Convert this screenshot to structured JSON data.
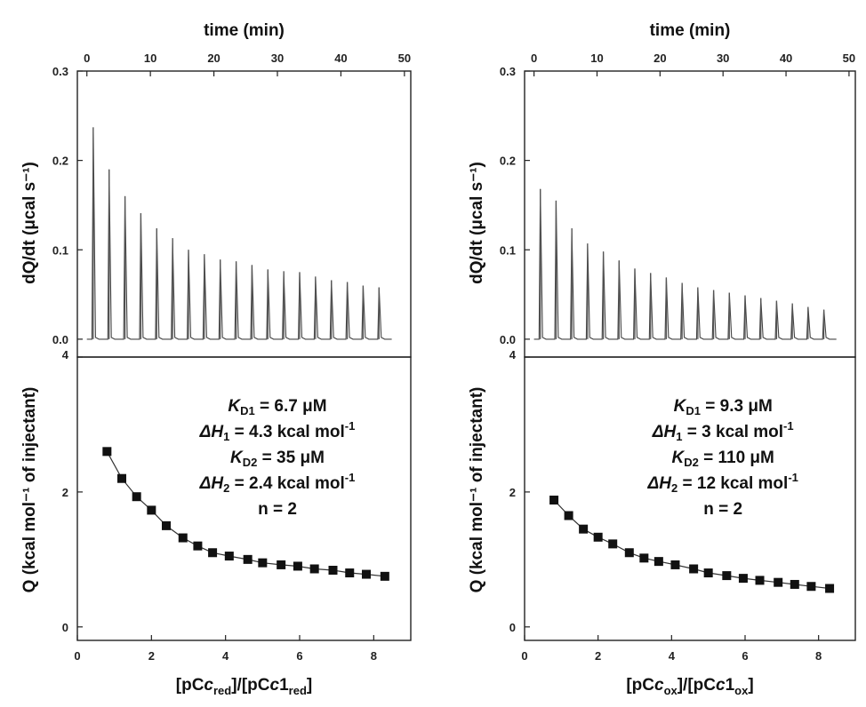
{
  "chart_data": [
    {
      "panel": "left",
      "top": {
        "type": "line",
        "x_top_label": "time (min)",
        "x_top_ticks": [
          "0",
          "10",
          "20",
          "30",
          "40",
          "50"
        ],
        "x_range": [
          -1.5,
          51
        ],
        "ylabel": "dQ/dt (μcal s⁻¹)",
        "y_ticks": [
          "0.0",
          "0.1",
          "0.2",
          "0.3"
        ],
        "ylim": [
          -0.02,
          0.3
        ],
        "peak_times": [
          1.0,
          3.5,
          6.0,
          8.5,
          11.0,
          13.5,
          16.0,
          18.5,
          21.0,
          23.5,
          26.0,
          28.5,
          31.0,
          33.5,
          36.0,
          38.5,
          41.0,
          43.5,
          46.0
        ],
        "peak_heights": [
          0.237,
          0.19,
          0.16,
          0.141,
          0.124,
          0.113,
          0.1,
          0.095,
          0.089,
          0.087,
          0.083,
          0.078,
          0.076,
          0.075,
          0.07,
          0.066,
          0.064,
          0.06,
          0.058
        ],
        "baseline_end": 48
      },
      "bottom": {
        "type": "scatter",
        "xlabel": "[pCc_red]/[pCc1_red]",
        "xlabel_parts": {
          "open": "[pC",
          "italic1": "c",
          "sub1": "red",
          "mid": "]/[pC",
          "italic2": "c",
          "one": "1",
          "sub2": "red",
          "close": "]"
        },
        "x_ticks": [
          "0",
          "2",
          "4",
          "6",
          "8"
        ],
        "xlim": [
          0,
          9
        ],
        "ylabel": "Q (kcal mol⁻¹ of injectant)",
        "y_ticks": [
          "0",
          "2",
          "4"
        ],
        "ylim": [
          -0.2,
          4
        ],
        "x": [
          0.8,
          1.2,
          1.6,
          2.0,
          2.4,
          2.85,
          3.25,
          3.65,
          4.1,
          4.6,
          5.0,
          5.5,
          5.95,
          6.4,
          6.9,
          7.35,
          7.8,
          8.3
        ],
        "y": [
          2.6,
          2.2,
          1.93,
          1.73,
          1.5,
          1.32,
          1.2,
          1.1,
          1.05,
          1.0,
          0.95,
          0.92,
          0.9,
          0.86,
          0.84,
          0.8,
          0.78,
          0.75
        ],
        "annotations": [
          {
            "sym": "K",
            "sub": "D1",
            "rest": " = 6.7 μM"
          },
          {
            "sym": "ΔH",
            "sub": "1",
            "rest": " = 4.3 kcal mol",
            "sup": "-1"
          },
          {
            "sym": "K",
            "sub": "D2",
            "rest": " = 35 μM"
          },
          {
            "sym": "ΔH",
            "sub": "2",
            "rest": " = 2.4 kcal mol",
            "sup": "-1"
          },
          {
            "sym": "",
            "sub": "",
            "rest": "n = 2"
          }
        ]
      }
    },
    {
      "panel": "right",
      "top": {
        "type": "line",
        "x_top_label": "time (min)",
        "x_top_ticks": [
          "0",
          "10",
          "20",
          "30",
          "40",
          "50"
        ],
        "x_range": [
          -1.5,
          51
        ],
        "ylabel": "dQ/dt (μcal s⁻¹)",
        "y_ticks": [
          "0.0",
          "0.1",
          "0.2",
          "0.3"
        ],
        "ylim": [
          -0.02,
          0.3
        ],
        "peak_times": [
          1.0,
          3.5,
          6.0,
          8.5,
          11.0,
          13.5,
          16.0,
          18.5,
          21.0,
          23.5,
          26.0,
          28.5,
          31.0,
          33.5,
          36.0,
          38.5,
          41.0,
          43.5,
          46.0
        ],
        "peak_heights": [
          0.168,
          0.155,
          0.124,
          0.107,
          0.098,
          0.088,
          0.079,
          0.074,
          0.069,
          0.063,
          0.058,
          0.055,
          0.052,
          0.049,
          0.046,
          0.043,
          0.04,
          0.036,
          0.033
        ],
        "baseline_end": 48
      },
      "bottom": {
        "type": "scatter",
        "xlabel": "[pCc_ox]/[pCc1_ox]",
        "xlabel_parts": {
          "open": "[pC",
          "italic1": "c",
          "sub1": "ox",
          "mid": "]/[pC",
          "italic2": "c",
          "one": "1",
          "sub2": "ox",
          "close": "]"
        },
        "x_ticks": [
          "0",
          "2",
          "4",
          "6",
          "8"
        ],
        "xlim": [
          0,
          9
        ],
        "ylabel": "Q (kcal mol⁻¹ of injectant)",
        "y_ticks": [
          "0",
          "2",
          "4"
        ],
        "ylim": [
          -0.2,
          4
        ],
        "x": [
          0.8,
          1.2,
          1.6,
          2.0,
          2.4,
          2.85,
          3.25,
          3.65,
          4.1,
          4.6,
          5.0,
          5.5,
          5.95,
          6.4,
          6.9,
          7.35,
          7.8,
          8.3
        ],
        "y": [
          1.88,
          1.65,
          1.45,
          1.33,
          1.23,
          1.1,
          1.02,
          0.97,
          0.92,
          0.86,
          0.8,
          0.76,
          0.72,
          0.69,
          0.66,
          0.63,
          0.6,
          0.57
        ],
        "annotations": [
          {
            "sym": "K",
            "sub": "D1",
            "rest": " = 9.3 μM"
          },
          {
            "sym": "ΔH",
            "sub": "1",
            "rest": " = 3 kcal mol",
            "sup": "-1"
          },
          {
            "sym": "K",
            "sub": "D2",
            "rest": " = 110 μM"
          },
          {
            "sym": "ΔH",
            "sub": "2",
            "rest": " = 12 kcal mol",
            "sup": "-1"
          },
          {
            "sym": "",
            "sub": "",
            "rest": "n = 2"
          }
        ]
      }
    }
  ]
}
